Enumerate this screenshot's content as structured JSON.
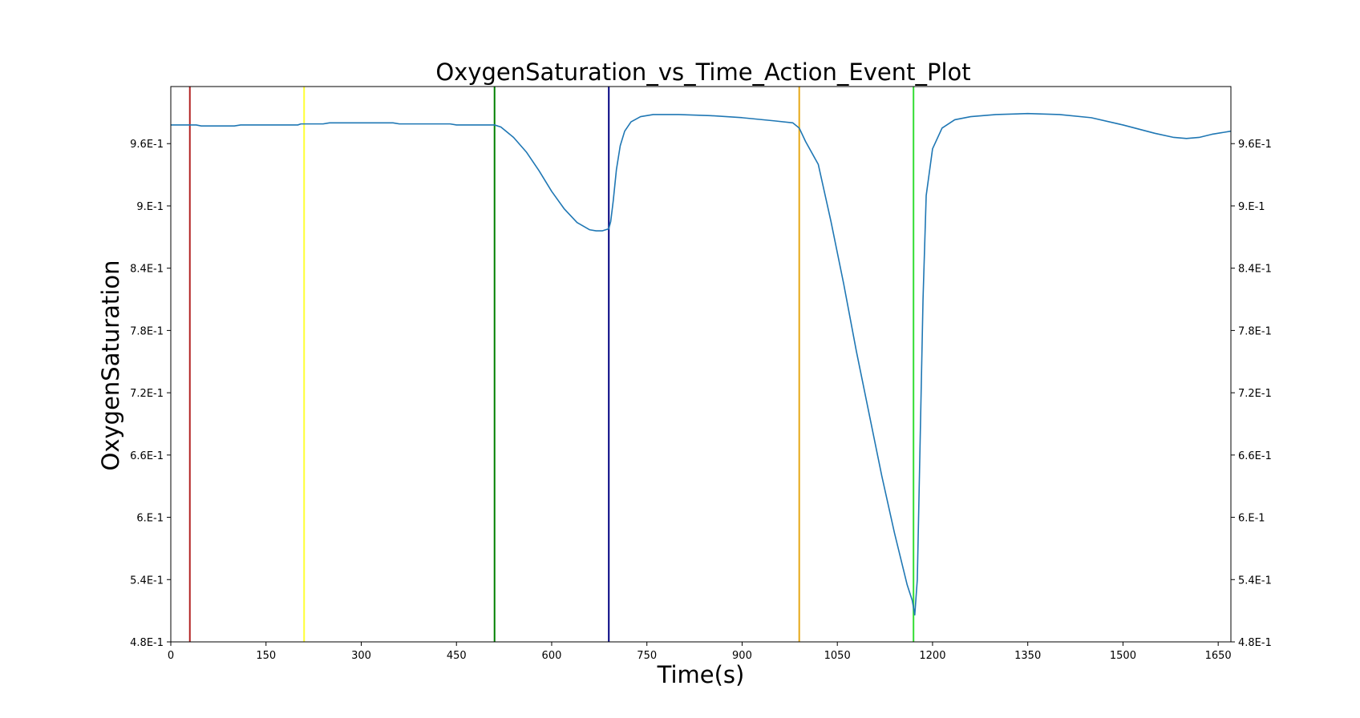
{
  "chart_data": {
    "type": "line",
    "title": "OxygenSaturation_vs_Time_Action_Event_Plot",
    "xlabel": "Time(s)",
    "ylabel": "OxygenSaturation",
    "xlim": [
      0,
      1670
    ],
    "ylim": [
      0.48,
      1.015
    ],
    "xticks": [
      0,
      150,
      300,
      450,
      600,
      750,
      900,
      1050,
      1200,
      1350,
      1500,
      1650
    ],
    "yticks": [
      0.48,
      0.54,
      0.6,
      0.66,
      0.72,
      0.78,
      0.84,
      0.9,
      0.96
    ],
    "ytick_labels": [
      "4.8E-1",
      "5.4E-1",
      "6.E-1",
      "6.6E-1",
      "7.2E-1",
      "7.8E-1",
      "8.4E-1",
      "9.E-1",
      "9.6E-1"
    ],
    "grid": false,
    "line_color": "#1f77b4",
    "series": [
      {
        "x": [
          0,
          40,
          48,
          100,
          110,
          200,
          205,
          240,
          250,
          350,
          360,
          440,
          450,
          500,
          510,
          520,
          540,
          560,
          580,
          600,
          620,
          640,
          660,
          670,
          680,
          690,
          693,
          697,
          702,
          708,
          715,
          725,
          740,
          760,
          780,
          800,
          850,
          900,
          950,
          980,
          990,
          1000,
          1020,
          1040,
          1060,
          1080,
          1100,
          1120,
          1140,
          1160,
          1168,
          1172,
          1176,
          1180,
          1185,
          1190,
          1200,
          1215,
          1235,
          1260,
          1300,
          1350,
          1400,
          1450,
          1500,
          1550,
          1580,
          1600,
          1620,
          1640,
          1670
        ],
        "y": [
          0.978,
          0.978,
          0.977,
          0.977,
          0.978,
          0.978,
          0.979,
          0.979,
          0.98,
          0.98,
          0.979,
          0.979,
          0.978,
          0.978,
          0.978,
          0.976,
          0.966,
          0.952,
          0.934,
          0.914,
          0.897,
          0.884,
          0.877,
          0.876,
          0.876,
          0.878,
          0.885,
          0.905,
          0.935,
          0.958,
          0.972,
          0.981,
          0.986,
          0.988,
          0.988,
          0.988,
          0.987,
          0.985,
          0.982,
          0.98,
          0.975,
          0.962,
          0.94,
          0.885,
          0.825,
          0.76,
          0.7,
          0.64,
          0.585,
          0.535,
          0.52,
          0.506,
          0.54,
          0.66,
          0.81,
          0.91,
          0.955,
          0.975,
          0.983,
          0.986,
          0.988,
          0.989,
          0.988,
          0.985,
          0.978,
          0.97,
          0.966,
          0.965,
          0.966,
          0.969,
          0.972
        ]
      }
    ],
    "event_lines": [
      {
        "x": 30,
        "color": "#b22222"
      },
      {
        "x": 210,
        "color": "#ffff33"
      },
      {
        "x": 510,
        "color": "#008000"
      },
      {
        "x": 690,
        "color": "#000080"
      },
      {
        "x": 990,
        "color": "#e6a817"
      },
      {
        "x": 1170,
        "color": "#33dd33"
      }
    ]
  }
}
